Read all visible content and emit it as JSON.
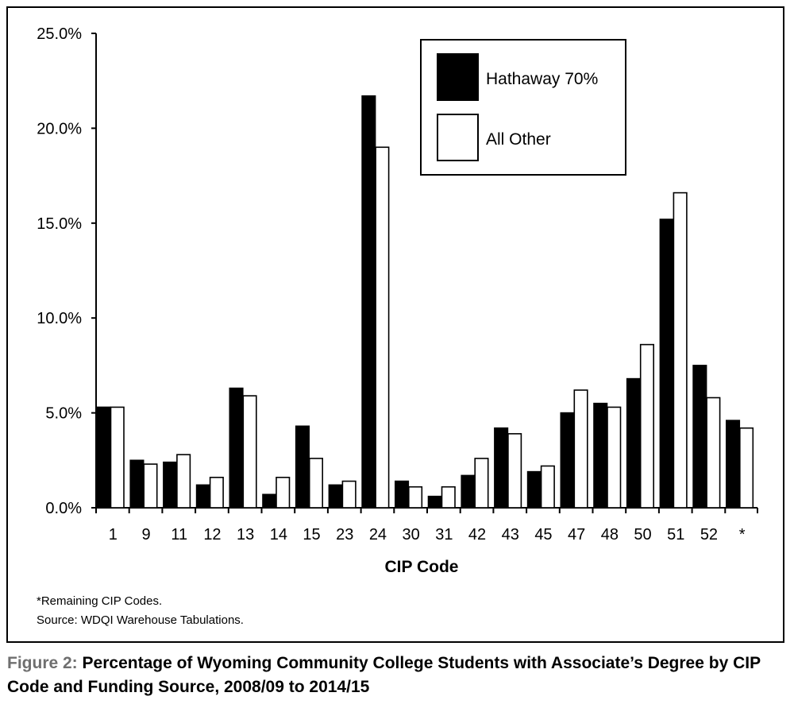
{
  "chart_data": {
    "type": "bar",
    "xlabel": "CIP Code",
    "ylabel": "",
    "ylim": [
      0,
      25
    ],
    "y_tick_labels": [
      "0.0%",
      "5.0%",
      "10.0%",
      "15.0%",
      "20.0%",
      "25.0%"
    ],
    "y_ticks": [
      0,
      5,
      10,
      15,
      20,
      25
    ],
    "categories": [
      "1",
      "9",
      "11",
      "12",
      "13",
      "14",
      "15",
      "23",
      "24",
      "30",
      "31",
      "42",
      "43",
      "45",
      "47",
      "48",
      "50",
      "51",
      "52",
      "*"
    ],
    "series": [
      {
        "name": "Hathaway 70%",
        "color": "#000000",
        "values": [
          5.3,
          2.5,
          2.4,
          1.2,
          6.3,
          0.7,
          4.3,
          1.2,
          21.7,
          1.4,
          0.6,
          1.7,
          4.2,
          1.9,
          5.0,
          5.5,
          6.8,
          15.2,
          7.5,
          4.6
        ]
      },
      {
        "name": "All Other",
        "color": "#ffffff",
        "values": [
          5.3,
          2.3,
          2.8,
          1.6,
          5.9,
          1.6,
          2.6,
          1.4,
          19.0,
          1.1,
          1.1,
          2.6,
          3.9,
          2.2,
          6.2,
          5.3,
          8.6,
          16.6,
          5.8,
          4.2
        ]
      }
    ],
    "legend_position": "top-right",
    "grid": false
  },
  "notes": {
    "remaining": "*Remaining CIP Codes.",
    "source": "Source: WDQI Warehouse Tabulations."
  },
  "caption": {
    "label": "Figure 2:",
    "text": "Percentage of Wyoming Community College Students with Associate’s Degree by CIP Code and Funding Source, 2008/09 to 2014/15"
  }
}
